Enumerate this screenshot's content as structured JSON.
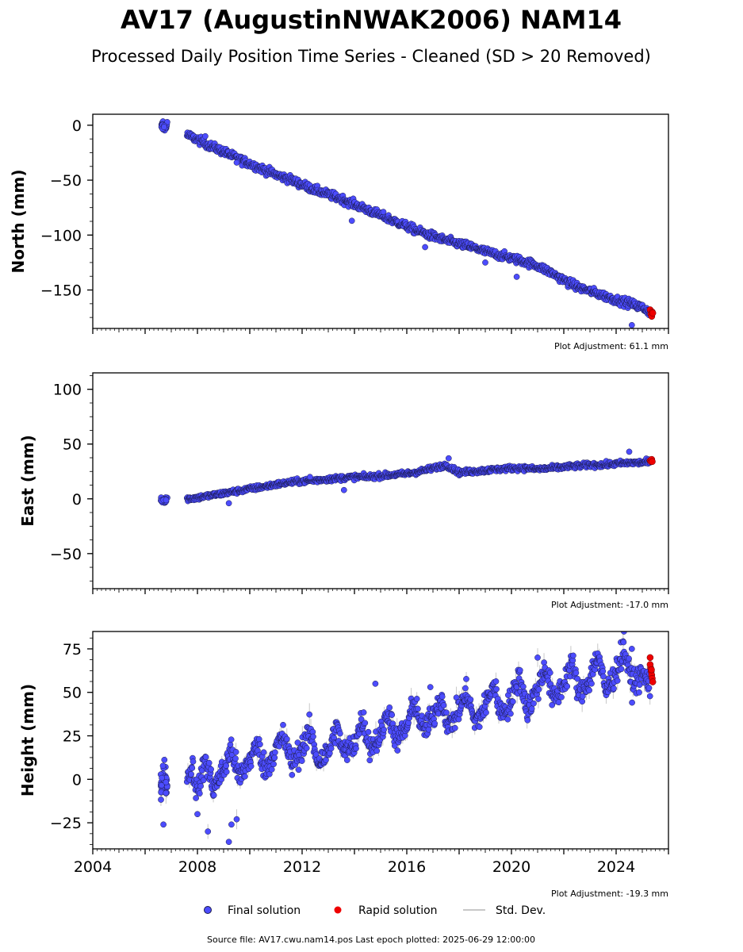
{
  "title": "AV17 (AugustinNWAK2006) NAM14",
  "subtitle": "Processed Daily Position Time Series - Cleaned (SD > 20 Removed)",
  "colors": {
    "final": "#4c4cff",
    "final_edge": "#1a1a4a",
    "rapid": "#ee0000",
    "std_dev": "#c8c8c8"
  },
  "legend": {
    "final": "Final solution",
    "rapid": "Rapid solution",
    "std": "Std. Dev."
  },
  "footer": "Source file: AV17.cwu.nam14.pos  Last epoch plotted: 2025-06-29 12:00:00",
  "chart_data": [
    {
      "type": "scatter",
      "ylabel": "North (mm)",
      "adjustment": "Plot Adjustment: 61.1 mm",
      "xlim": [
        2004.0,
        2026.0
      ],
      "ylim": [
        -185,
        10
      ],
      "yticks": [
        0,
        -50,
        -100,
        -150
      ],
      "ytick_labels": [
        "0",
        "−50",
        "−100",
        "−150"
      ],
      "show_xtick_labels": false,
      "final": {
        "x": [
          2006.6,
          2006.75,
          2006.85,
          2007.6,
          2008.0,
          2008.5,
          2009.0,
          2009.5,
          2010.0,
          2010.5,
          2011.0,
          2011.5,
          2012.0,
          2012.5,
          2013.0,
          2013.5,
          2014.0,
          2014.5,
          2015.0,
          2015.5,
          2016.0,
          2016.5,
          2017.0,
          2017.5,
          2018.0,
          2018.5,
          2019.0,
          2019.5,
          2020.0,
          2020.5,
          2021.0,
          2021.5,
          2022.0,
          2022.5,
          2023.0,
          2023.5,
          2024.0,
          2024.5,
          2025.0,
          2025.3
        ],
        "y": [
          2,
          -3,
          3,
          -9,
          -13,
          -19,
          -24,
          -30,
          -35,
          -40,
          -45,
          -49,
          -54,
          -59,
          -63,
          -67,
          -72,
          -77,
          -82,
          -87,
          -92,
          -97,
          -101,
          -105,
          -108,
          -111,
          -115,
          -118,
          -121,
          -124,
          -128,
          -134,
          -141,
          -147,
          -151,
          -155,
          -159,
          -162,
          -166,
          -170
        ],
        "noise": 3.5,
        "outliers": [
          [
            2008.3,
            -10
          ],
          [
            2013.9,
            -87
          ],
          [
            2019.0,
            -125
          ],
          [
            2020.2,
            -138
          ],
          [
            2024.6,
            -182
          ],
          [
            2009.5,
            -34
          ],
          [
            2016.7,
            -111
          ]
        ]
      },
      "rapid": {
        "x": [
          2025.3,
          2025.33,
          2025.36,
          2025.38,
          2025.4
        ],
        "y": [
          -168,
          -172,
          -174,
          -170,
          -171
        ]
      }
    },
    {
      "type": "scatter",
      "ylabel": "East (mm)",
      "adjustment": "Plot Adjustment: -17.0 mm",
      "xlim": [
        2004.0,
        2026.0
      ],
      "ylim": [
        -82,
        115
      ],
      "yticks": [
        100,
        50,
        0,
        -50
      ],
      "ytick_labels": [
        "100",
        "50",
        "0",
        "−50"
      ],
      "show_xtick_labels": false,
      "final": {
        "x": [
          2006.6,
          2006.75,
          2006.85,
          2007.6,
          2008.0,
          2008.5,
          2009.0,
          2009.5,
          2010.0,
          2010.5,
          2011.0,
          2011.5,
          2012.0,
          2012.5,
          2013.0,
          2013.5,
          2014.0,
          2014.5,
          2015.0,
          2015.5,
          2016.0,
          2016.5,
          2017.0,
          2017.5,
          2018.0,
          2018.5,
          2019.0,
          2019.5,
          2020.0,
          2020.5,
          2021.0,
          2021.5,
          2022.0,
          2022.5,
          2023.0,
          2023.5,
          2024.0,
          2024.5,
          2025.0,
          2025.3
        ],
        "y": [
          -1,
          -2,
          0,
          0,
          1,
          3,
          5,
          7,
          9,
          11,
          13,
          15,
          16,
          17,
          18,
          19,
          20,
          20,
          21,
          22,
          23,
          25,
          28,
          31,
          24,
          25,
          26,
          27,
          28,
          28,
          27,
          28,
          29,
          30,
          31,
          31,
          32,
          33,
          33,
          34
        ],
        "noise": 2.2,
        "outliers": [
          [
            2009.2,
            -4
          ],
          [
            2013.6,
            8
          ],
          [
            2017.6,
            37
          ],
          [
            2024.5,
            43
          ],
          [
            2012.3,
            20
          ]
        ]
      },
      "rapid": {
        "x": [
          2025.3,
          2025.33,
          2025.36,
          2025.38
        ],
        "y": [
          35,
          34,
          36,
          34
        ]
      }
    },
    {
      "type": "scatter",
      "ylabel": "Height (mm)",
      "adjustment": "Plot Adjustment: -19.3 mm",
      "xlim": [
        2004.0,
        2026.0
      ],
      "ylim": [
        -40,
        85
      ],
      "yticks": [
        75,
        50,
        25,
        0,
        -25
      ],
      "ytick_labels": [
        "75",
        "50",
        "25",
        "0",
        "−25"
      ],
      "show_xtick_labels": true,
      "xticks": [
        2004,
        2008,
        2012,
        2016,
        2020,
        2024
      ],
      "xtick_labels": [
        "2004",
        "2008",
        "2012",
        "2016",
        "2020",
        "2024"
      ],
      "final": {
        "x": [
          2006.6,
          2006.75,
          2006.85,
          2007.6,
          2007.8,
          2008.0,
          2008.3,
          2008.6,
          2009.0,
          2009.3,
          2009.6,
          2010.0,
          2010.3,
          2010.6,
          2011.0,
          2011.3,
          2011.6,
          2012.0,
          2012.3,
          2012.6,
          2013.0,
          2013.3,
          2013.6,
          2014.0,
          2014.3,
          2014.6,
          2015.0,
          2015.3,
          2015.6,
          2016.0,
          2016.3,
          2016.6,
          2017.0,
          2017.3,
          2017.6,
          2018.0,
          2018.3,
          2018.6,
          2019.0,
          2019.3,
          2019.6,
          2020.0,
          2020.3,
          2020.6,
          2021.0,
          2021.3,
          2021.6,
          2022.0,
          2022.3,
          2022.6,
          2023.0,
          2023.3,
          2023.6,
          2024.0,
          2024.3,
          2024.6,
          2025.0,
          2025.3
        ],
        "y": [
          -2,
          3,
          -5,
          0,
          8,
          -8,
          12,
          -5,
          5,
          18,
          0,
          12,
          20,
          5,
          18,
          25,
          8,
          18,
          28,
          10,
          15,
          30,
          15,
          20,
          35,
          18,
          25,
          40,
          22,
          30,
          45,
          28,
          35,
          48,
          30,
          40,
          50,
          32,
          42,
          55,
          38,
          45,
          60,
          40,
          52,
          65,
          45,
          55,
          68,
          48,
          58,
          72,
          50,
          62,
          75,
          55,
          60,
          55
        ],
        "noise": 7,
        "outliers": [
          [
            2006.7,
            -26
          ],
          [
            2008.0,
            -20
          ],
          [
            2008.4,
            -30
          ],
          [
            2009.2,
            -36
          ],
          [
            2009.3,
            -26
          ],
          [
            2009.5,
            -23
          ],
          [
            2014.8,
            55
          ],
          [
            2016.9,
            53
          ],
          [
            2021.0,
            70
          ],
          [
            2024.3,
            85
          ],
          [
            2024.6,
            75
          ]
        ]
      },
      "rapid": {
        "x": [
          2025.3,
          2025.32,
          2025.34,
          2025.36,
          2025.38,
          2025.4,
          2025.3,
          2025.35
        ],
        "y": [
          70,
          64,
          62,
          60,
          58,
          56,
          66,
          63
        ]
      }
    }
  ]
}
